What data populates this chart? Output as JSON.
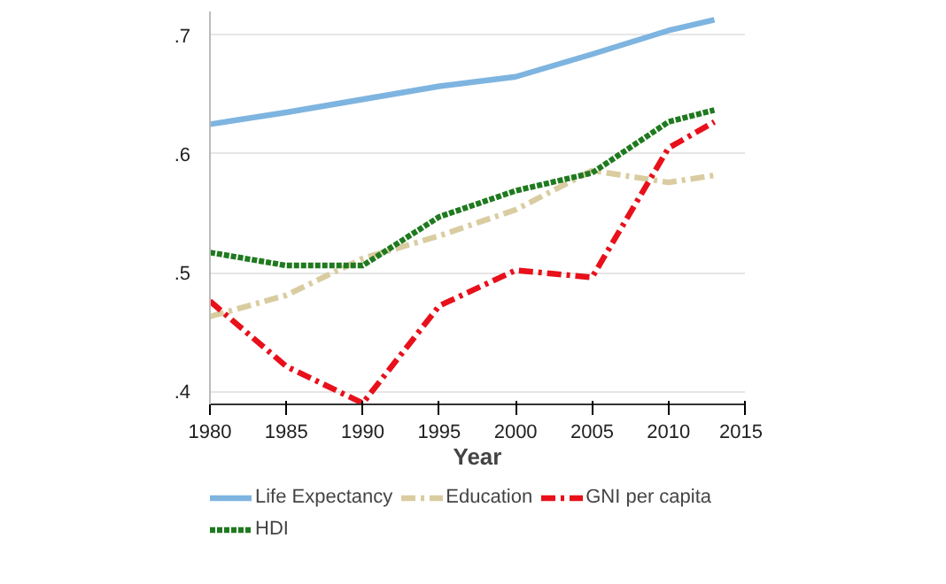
{
  "chart_data": {
    "type": "line",
    "xlabel": "Year",
    "x": [
      1980,
      1985,
      1990,
      1995,
      2000,
      2005,
      2010,
      2013
    ],
    "xlim": [
      1980,
      2015
    ],
    "xticks": [
      1980,
      1985,
      1990,
      1995,
      2000,
      2005,
      2010,
      2015
    ],
    "ylim": [
      0.389,
      0.72
    ],
    "yticks": [
      {
        "value": 0.4,
        "label": ".4"
      },
      {
        "value": 0.5,
        "label": ".5"
      },
      {
        "value": 0.6,
        "label": ".6"
      },
      {
        "value": 0.7,
        "label": ".7"
      }
    ],
    "grid": "y",
    "legend": "bottom",
    "marker": "none",
    "series": [
      {
        "name": "Life Expectancy",
        "color": "#7eb4e0",
        "line_style": "solid",
        "values": [
          0.625,
          0.635,
          0.646,
          0.657,
          0.665,
          0.684,
          0.704,
          0.713
        ]
      },
      {
        "name": "Education",
        "color": "#d9cca0",
        "line_style": "dashed",
        "values": [
          0.463,
          0.481,
          0.512,
          0.531,
          0.553,
          0.586,
          0.576,
          0.582
        ]
      },
      {
        "name": "GNI per capita",
        "color": "#e8101a",
        "line_style": "dashed",
        "values": [
          0.476,
          0.421,
          0.39,
          0.472,
          0.502,
          0.496,
          0.605,
          0.627
        ]
      },
      {
        "name": "HDI",
        "color": "#1f7a1f",
        "line_style": "dotted",
        "values": [
          0.517,
          0.506,
          0.506,
          0.547,
          0.569,
          0.584,
          0.627,
          0.637
        ]
      }
    ]
  }
}
